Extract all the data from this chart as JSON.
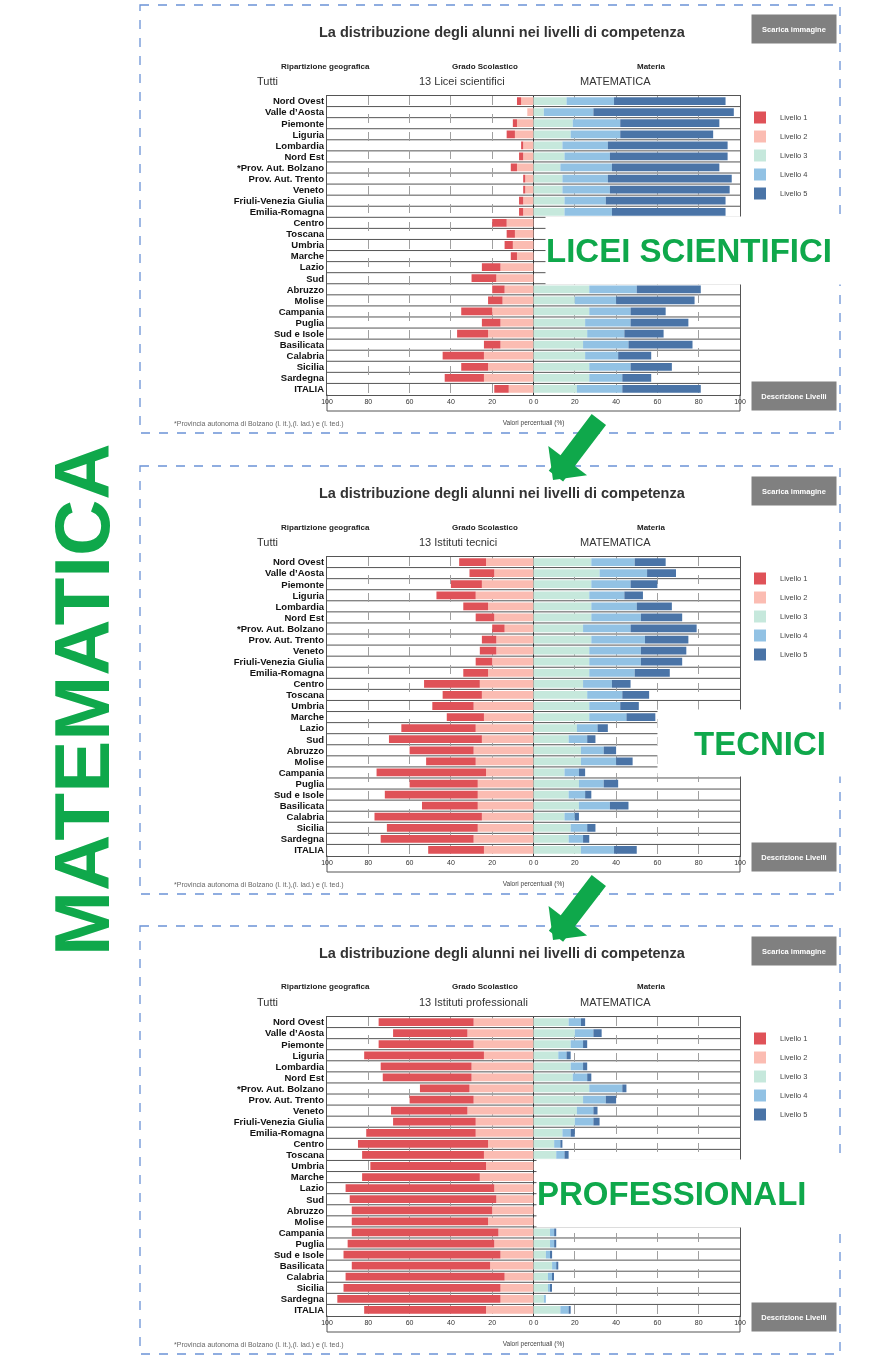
{
  "chart_data": [
    {
      "type": "bar",
      "orientation": "horizontal",
      "stacked": true,
      "title": "La distribuzione degli alunni nei livelli di competenza",
      "xlabel": "Valori percentuali (%)",
      "categories": [
        "Nord Ovest",
        "Valle d’Aosta",
        "Piemonte",
        "Liguria",
        "Lombardia",
        "Nord Est",
        "*Prov. Aut. Bolzano",
        "Prov. Aut. Trento",
        "Veneto",
        "Friuli-Venezia Giulia",
        "Emilia-Romagna",
        "Centro",
        "Toscana",
        "Umbria",
        "Marche",
        "Lazio",
        "Sud",
        "Abruzzo",
        "Molise",
        "Campania",
        "Puglia",
        "Sud e Isole",
        "Basilicata",
        "Calabria",
        "Sicilia",
        "Sardegna",
        "ITALIA"
      ],
      "series": [
        {
          "name": "Livello 2",
          "color": "#fbbcb2",
          "values": [
            -6,
            -3,
            -8,
            -9,
            -5,
            -5,
            -8,
            -4,
            -4,
            -5,
            -5,
            -13,
            -9,
            -10,
            -8,
            -16,
            -18,
            -14,
            -15,
            -20,
            -16,
            -22,
            -16,
            -24,
            -22,
            -24,
            -12
          ]
        },
        {
          "name": "Livello 1",
          "color": "#df5258",
          "values": [
            -2,
            0,
            -2,
            -4,
            -1,
            -2,
            -3,
            -1,
            -1,
            -2,
            -2,
            -7,
            -4,
            -4,
            -3,
            -9,
            -12,
            -6,
            -7,
            -15,
            -9,
            -15,
            -8,
            -20,
            -13,
            -19,
            -7
          ]
        },
        {
          "name": "Livello 3",
          "color": "#c6e8dc",
          "values": [
            16,
            5,
            19,
            18,
            14,
            15,
            13,
            14,
            14,
            15,
            15,
            null,
            null,
            null,
            null,
            null,
            null,
            27,
            20,
            27,
            25,
            26,
            24,
            25,
            27,
            27,
            21
          ]
        },
        {
          "name": "Livello 4",
          "color": "#92c2e4",
          "values": [
            23,
            24,
            23,
            24,
            22,
            22,
            25,
            22,
            23,
            20,
            23,
            null,
            null,
            null,
            null,
            null,
            null,
            23,
            20,
            20,
            22,
            18,
            22,
            16,
            20,
            16,
            22
          ]
        },
        {
          "name": "Livello 5",
          "color": "#4a74a7",
          "values": [
            54,
            68,
            48,
            45,
            58,
            57,
            52,
            60,
            58,
            58,
            55,
            null,
            null,
            null,
            null,
            null,
            null,
            31,
            38,
            17,
            28,
            19,
            31,
            16,
            20,
            14,
            38
          ]
        }
      ],
      "xlim": [
        -100,
        100
      ],
      "xticks": [
        {
          "value": -100,
          "label": "100"
        },
        {
          "value": -80,
          "label": "80"
        },
        {
          "value": -60,
          "label": "60"
        },
        {
          "value": -40,
          "label": "40"
        },
        {
          "value": -20,
          "label": "20"
        },
        {
          "value": 0,
          "label": "0 0"
        },
        20,
        40,
        60,
        80,
        100
      ],
      "grid": true,
      "legend": "right",
      "annotations": [
        "Ripartizione geografica",
        "Tutti",
        "Grado Scolastico",
        "13 Licei scientifici",
        "Materia",
        "MATEMATICA",
        "Scarica immagine",
        "Descrizione Livelli",
        "*Provincia autonoma di Bolzano (l. it.),(l. lad.) e (l. ted.)",
        "LICEI SCIENTIFICI"
      ]
    },
    {
      "type": "bar",
      "orientation": "horizontal",
      "stacked": true,
      "title": "La distribuzione degli alunni nei livelli di competenza",
      "xlabel": "Valori percentuali (%)",
      "categories": [
        "Nord Ovest",
        "Valle d’Aosta",
        "Piemonte",
        "Liguria",
        "Lombardia",
        "Nord Est",
        "*Prov. Aut. Bolzano",
        "Prov. Aut. Trento",
        "Veneto",
        "Friuli-Venezia Giulia",
        "Emilia-Romagna",
        "Centro",
        "Toscana",
        "Umbria",
        "Marche",
        "Lazio",
        "Sud",
        "Abruzzo",
        "Molise",
        "Campania",
        "Puglia",
        "Sud e Isole",
        "Basilicata",
        "Calabria",
        "Sicilia",
        "Sardegna",
        "ITALIA"
      ],
      "series": [
        {
          "name": "Livello 2",
          "color": "#fbbcb2",
          "values": [
            -23,
            -19,
            -25,
            -28,
            -22,
            -19,
            -14,
            -18,
            -18,
            -20,
            -22,
            -26,
            -25,
            -29,
            -24,
            -28,
            -25,
            -29,
            -28,
            -23,
            -27,
            -27,
            -27,
            -25,
            -27,
            -29,
            -24
          ]
        },
        {
          "name": "Livello 1",
          "color": "#df5258",
          "values": [
            -13,
            -12,
            -15,
            -19,
            -12,
            -9,
            -6,
            -7,
            -8,
            -8,
            -12,
            -27,
            -19,
            -20,
            -18,
            -36,
            -45,
            -31,
            -24,
            -53,
            -33,
            -45,
            -27,
            -52,
            -44,
            -45,
            -27
          ]
        },
        {
          "name": "Livello 3",
          "color": "#c6e8dc",
          "values": [
            28,
            32,
            28,
            27,
            28,
            28,
            24,
            28,
            27,
            27,
            27,
            24,
            26,
            27,
            27,
            21,
            17,
            23,
            23,
            15,
            22,
            17,
            22,
            15,
            18,
            17,
            23
          ]
        },
        {
          "name": "Livello 4",
          "color": "#92c2e4",
          "values": [
            21,
            23,
            19,
            17,
            22,
            24,
            23,
            26,
            25,
            25,
            22,
            14,
            17,
            15,
            18,
            10,
            9,
            11,
            17,
            7,
            12,
            8,
            15,
            5,
            8,
            7,
            16
          ]
        },
        {
          "name": "Livello 5",
          "color": "#4a74a7",
          "values": [
            15,
            14,
            13,
            9,
            17,
            20,
            32,
            21,
            22,
            20,
            17,
            9,
            13,
            9,
            14,
            5,
            4,
            6,
            8,
            3,
            7,
            3,
            9,
            2,
            4,
            3,
            11
          ]
        }
      ],
      "xlim": [
        -100,
        100
      ],
      "xticks": [
        {
          "value": -100,
          "label": "100"
        },
        {
          "value": -80,
          "label": "80"
        },
        {
          "value": -60,
          "label": "60"
        },
        {
          "value": -40,
          "label": "40"
        },
        {
          "value": -20,
          "label": "20"
        },
        {
          "value": 0,
          "label": "0 0"
        },
        20,
        40,
        60,
        80,
        100
      ],
      "grid": true,
      "legend": "right",
      "annotations": [
        "Ripartizione geografica",
        "Tutti",
        "Grado Scolastico",
        "13 Istituti tecnici",
        "Materia",
        "MATEMATICA",
        "Scarica immagine",
        "Descrizione Livelli",
        "*Provincia autonoma di Bolzano (l. it.),(l. lad.) e (l. ted.)",
        "TECNICI",
        "MATEMATICA"
      ]
    },
    {
      "type": "bar",
      "orientation": "horizontal",
      "stacked": true,
      "title": "La distribuzione degli alunni nei livelli di competenza",
      "xlabel": "Valori percentuali (%)",
      "categories": [
        "Nord Ovest",
        "Valle d’Aosta",
        "Piemonte",
        "Liguria",
        "Lombardia",
        "Nord Est",
        "*Prov. Aut. Bolzano",
        "Prov. Aut. Trento",
        "Veneto",
        "Friuli-Venezia Giulia",
        "Emilia-Romagna",
        "Centro",
        "Toscana",
        "Umbria",
        "Marche",
        "Lazio",
        "Sud",
        "Abruzzo",
        "Molise",
        "Campania",
        "Puglia",
        "Sud e Isole",
        "Basilicata",
        "Calabria",
        "Sicilia",
        "Sardegna",
        "ITALIA"
      ],
      "series": [
        {
          "name": "Livello 2",
          "color": "#fbbcb2",
          "values": [
            -29,
            -32,
            -29,
            -24,
            -30,
            -30,
            -31,
            -29,
            -32,
            -28,
            -28,
            -22,
            -24,
            -23,
            -26,
            -19,
            -18,
            -20,
            -22,
            -17,
            -19,
            -16,
            -21,
            -14,
            -16,
            -16,
            -23
          ]
        },
        {
          "name": "Livello 1",
          "color": "#df5258",
          "values": [
            -46,
            -36,
            -46,
            -58,
            -44,
            -43,
            -24,
            -31,
            -37,
            -40,
            -53,
            -63,
            -59,
            -56,
            -57,
            -72,
            -71,
            -68,
            -66,
            -71,
            -71,
            -76,
            -67,
            -77,
            -76,
            -79,
            -59
          ]
        },
        {
          "name": "Livello 3",
          "color": "#c6e8dc",
          "values": [
            17,
            20,
            18,
            12,
            18,
            19,
            27,
            24,
            21,
            20,
            14,
            10,
            11,
            null,
            null,
            null,
            null,
            null,
            null,
            8,
            8,
            6,
            9,
            7,
            7,
            5,
            13
          ]
        },
        {
          "name": "Livello 4",
          "color": "#92c2e4",
          "values": [
            6,
            9,
            6,
            4,
            6,
            7,
            16,
            11,
            8,
            9,
            4,
            3,
            4,
            null,
            null,
            null,
            null,
            null,
            null,
            2,
            2,
            2,
            2,
            2,
            1,
            1,
            4
          ]
        },
        {
          "name": "Livello 5",
          "color": "#4a74a7",
          "values": [
            2,
            4,
            2,
            2,
            2,
            2,
            2,
            5,
            2,
            3,
            2,
            1,
            2,
            null,
            null,
            null,
            null,
            null,
            null,
            1,
            1,
            1,
            1,
            0.5,
            0.5,
            0,
            1
          ]
        }
      ],
      "xlim": [
        -100,
        100
      ],
      "xticks": [
        {
          "value": -100,
          "label": "100"
        },
        {
          "value": -80,
          "label": "80"
        },
        {
          "value": -60,
          "label": "60"
        },
        {
          "value": -40,
          "label": "40"
        },
        {
          "value": -20,
          "label": "20"
        },
        {
          "value": 0,
          "label": "0 0"
        },
        20,
        40,
        60,
        80,
        100
      ],
      "grid": true,
      "legend": "right",
      "annotations": [
        "Ripartizione geografica",
        "Tutti",
        "Grado Scolastico",
        "13 Istituti professionali",
        "Materia",
        "MATEMATICA",
        "Scarica immagine",
        "Descrizione Livelli",
        "*Provincia autonoma di Bolzano (l. it.),(l. lad.) e (l. ted.)",
        "PROFESSIONALI"
      ]
    }
  ]
}
